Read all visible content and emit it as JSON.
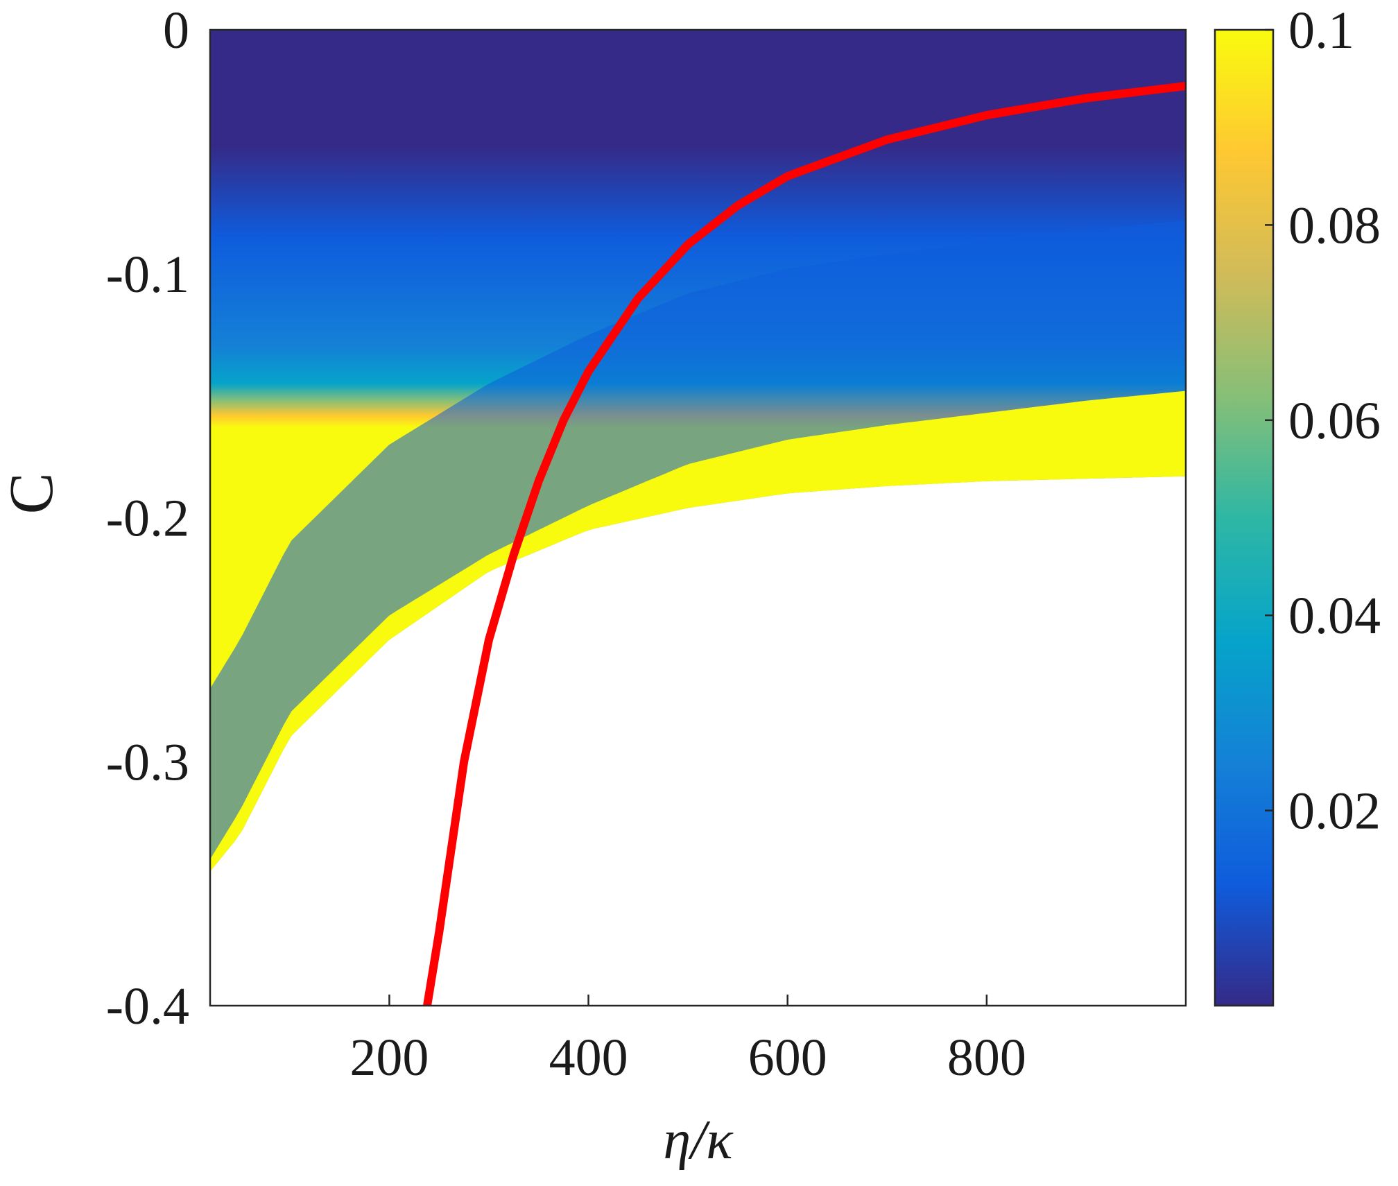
{
  "chart_data": {
    "type": "heatmap",
    "title": "",
    "xlabel": "η/κ",
    "ylabel": "C",
    "xlim": [
      20,
      1000
    ],
    "ylim": [
      -0.4,
      0
    ],
    "x_ticks": [
      200,
      400,
      600,
      800
    ],
    "y_ticks": [
      0,
      -0.1,
      -0.2,
      -0.3,
      -0.4
    ],
    "x_tick_labels": [
      "200",
      "400",
      "600",
      "800"
    ],
    "y_tick_labels": [
      "0",
      "-0.1",
      "-0.2",
      "-0.3",
      "-0.4"
    ],
    "grid": false,
    "colorbar": {
      "position": "right",
      "range": [
        0,
        0.1
      ],
      "ticks": [
        0.02,
        0.04,
        0.06,
        0.08,
        0.1
      ],
      "tick_labels": [
        "0.02",
        "0.04",
        "0.06",
        "0.08",
        "0.1"
      ],
      "colormap": "parula",
      "colors": [
        "#352a87",
        "#0f5cdd",
        "#1481d6",
        "#06a4ca",
        "#2eb7a4",
        "#87bf77",
        "#d1bb59",
        "#fec832",
        "#f9fb0e"
      ]
    },
    "colored_region_lower_boundary": {
      "x": [
        20,
        50,
        100,
        200,
        300,
        400,
        500,
        600,
        700,
        800,
        900,
        1000
      ],
      "y": [
        -0.345,
        -0.33,
        -0.29,
        -0.25,
        -0.222,
        -0.205,
        -0.196,
        -0.19,
        -0.187,
        -0.185,
        -0.184,
        -0.183
      ]
    },
    "high_value_band_upper_boundary": {
      "x": [
        20,
        50,
        100,
        200,
        300,
        400,
        500,
        600,
        700,
        800,
        900,
        1000
      ],
      "y": [
        -0.34,
        -0.32,
        -0.28,
        -0.24,
        -0.215,
        -0.195,
        -0.178,
        -0.168,
        -0.162,
        -0.157,
        -0.152,
        -0.148
      ]
    },
    "series": [
      {
        "color": "#ff0000",
        "x": [
          238,
          250,
          275,
          300,
          325,
          350,
          375,
          400,
          450,
          500,
          550,
          600,
          700,
          800,
          900,
          1000
        ],
        "y": [
          -0.4,
          -0.37,
          -0.3,
          -0.25,
          -0.215,
          -0.185,
          -0.16,
          -0.14,
          -0.11,
          -0.088,
          -0.072,
          -0.06,
          -0.045,
          -0.035,
          -0.028,
          -0.023
        ]
      }
    ]
  }
}
